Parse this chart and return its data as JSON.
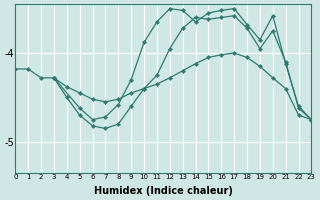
{
  "xlabel": "Humidex (Indice chaleur)",
  "bg_color": "#d0e8e5",
  "grid_color": "#ffffff",
  "line_color": "#2e7b6e",
  "x_min": 0,
  "x_max": 23,
  "y_min": -5.35,
  "y_max": -3.45,
  "yticks": [
    -5,
    -4
  ],
  "xticks": [
    0,
    1,
    2,
    3,
    4,
    5,
    6,
    7,
    8,
    9,
    10,
    11,
    12,
    13,
    14,
    15,
    16,
    17,
    18,
    19,
    20,
    21,
    22,
    23
  ],
  "series": [
    {
      "x": [
        0,
        1,
        2,
        3,
        4,
        5,
        6,
        7,
        8,
        9,
        10,
        11,
        12,
        13,
        14,
        15,
        16,
        17,
        18,
        19,
        20,
        21,
        22,
        23
      ],
      "y": [
        -4.18,
        -4.18,
        -4.28,
        -4.28,
        -4.38,
        -4.45,
        -4.52,
        -4.55,
        -4.52,
        -4.45,
        -4.4,
        -4.35,
        -4.28,
        -4.2,
        -4.12,
        -4.05,
        -4.02,
        -4.0,
        -4.05,
        -4.15,
        -4.28,
        -4.4,
        -4.7,
        -4.75
      ]
    },
    {
      "x": [
        3,
        4,
        5,
        6,
        7,
        8,
        9,
        10,
        11,
        12,
        13,
        14,
        15,
        16,
        17,
        18,
        19,
        20,
        21,
        22,
        23
      ],
      "y": [
        -4.28,
        -4.5,
        -4.7,
        -4.82,
        -4.85,
        -4.8,
        -4.6,
        -4.4,
        -4.25,
        -3.95,
        -3.72,
        -3.6,
        -3.62,
        -3.6,
        -3.58,
        -3.72,
        -3.95,
        -3.75,
        -4.1,
        -4.62,
        -4.75
      ]
    },
    {
      "x": [
        3,
        5,
        6,
        7,
        8,
        9,
        10,
        11,
        12,
        13,
        14,
        15,
        16,
        17,
        18,
        19,
        20,
        21,
        22,
        23
      ],
      "y": [
        -4.28,
        -4.62,
        -4.75,
        -4.72,
        -4.58,
        -4.3,
        -3.88,
        -3.65,
        -3.5,
        -3.52,
        -3.65,
        -3.55,
        -3.52,
        -3.5,
        -3.68,
        -3.85,
        -3.58,
        -4.12,
        -4.6,
        -4.75
      ]
    }
  ]
}
